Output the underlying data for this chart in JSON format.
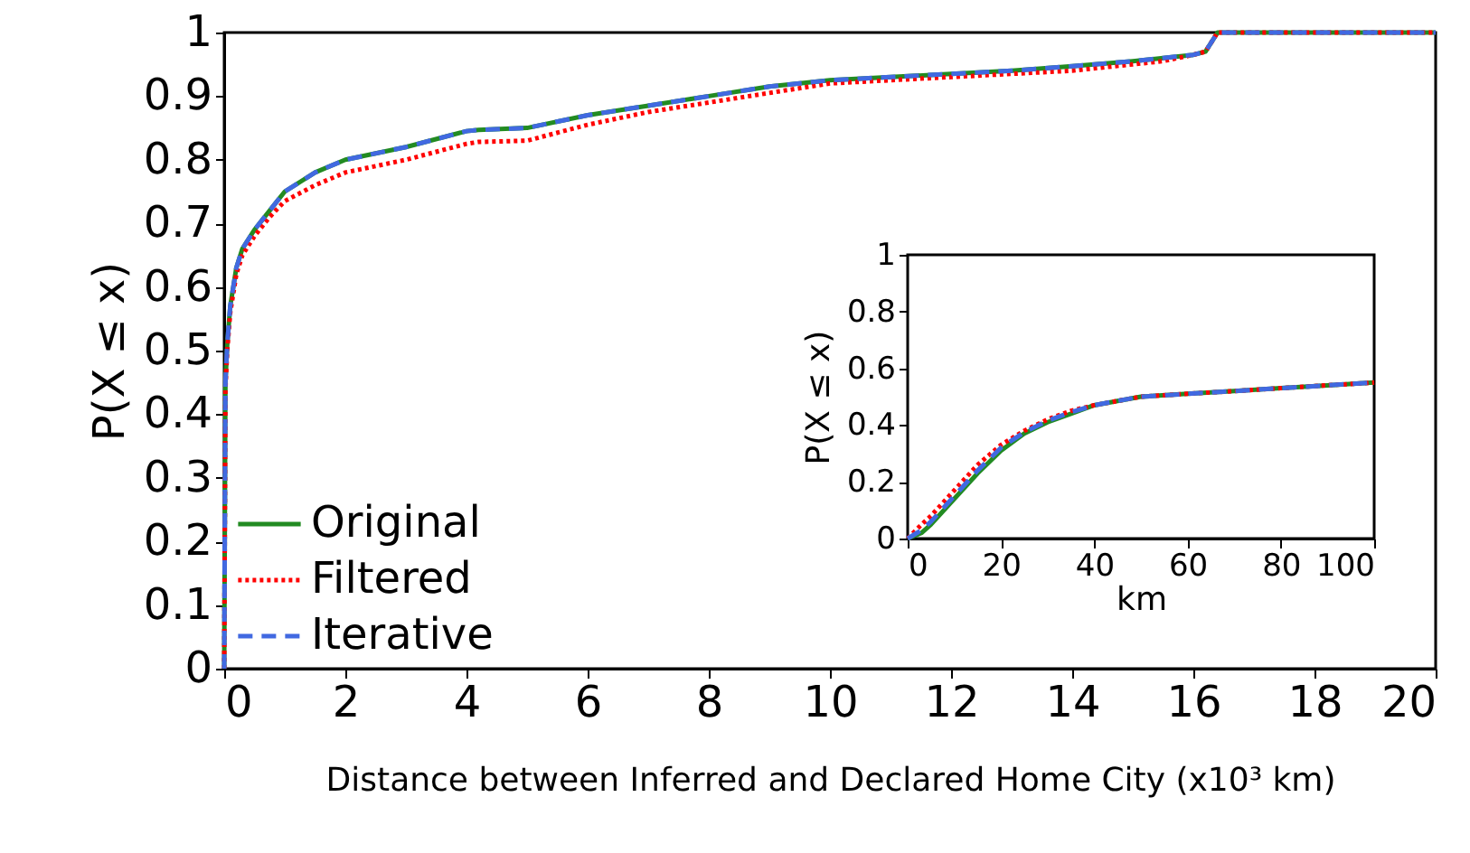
{
  "chart_data": [
    {
      "type": "line",
      "xlabel": "Distance between Inferred and Declared Home City (x10³ km)",
      "ylabel": "P(X ≤ x)",
      "xlim": [
        0,
        20
      ],
      "ylim": [
        0,
        1
      ],
      "xticks": [
        0,
        2,
        4,
        6,
        8,
        10,
        12,
        14,
        16,
        18,
        20
      ],
      "yticks": [
        0,
        0.1,
        0.2,
        0.3,
        0.4,
        0.5,
        0.6,
        0.7,
        0.8,
        0.9,
        1
      ],
      "grid": false,
      "legend": "bottom left",
      "marker": "none",
      "x": [
        0,
        0.02,
        0.05,
        0.1,
        0.2,
        0.3,
        0.5,
        0.75,
        1,
        1.5,
        2,
        3,
        4,
        4.2,
        5,
        6,
        7,
        8,
        9,
        10,
        11,
        12,
        13,
        14,
        15,
        15.5,
        16,
        16.2,
        16.4,
        17,
        18,
        20
      ],
      "series": [
        {
          "name": "Original",
          "color": "#228b22",
          "line_style": "solid",
          "values": [
            0,
            0.45,
            0.51,
            0.57,
            0.63,
            0.66,
            0.69,
            0.72,
            0.75,
            0.78,
            0.8,
            0.82,
            0.845,
            0.847,
            0.85,
            0.87,
            0.885,
            0.9,
            0.915,
            0.925,
            0.93,
            0.935,
            0.94,
            0.947,
            0.955,
            0.96,
            0.965,
            0.97,
            1,
            1,
            1,
            1
          ]
        },
        {
          "name": "Filtered",
          "color": "#ff0000",
          "line_style": "dotted",
          "values": [
            0,
            0.44,
            0.5,
            0.56,
            0.62,
            0.65,
            0.68,
            0.71,
            0.735,
            0.76,
            0.78,
            0.8,
            0.825,
            0.828,
            0.83,
            0.855,
            0.875,
            0.89,
            0.905,
            0.92,
            0.925,
            0.93,
            0.935,
            0.94,
            0.95,
            0.955,
            0.965,
            0.97,
            1,
            1,
            1,
            1
          ]
        },
        {
          "name": "Iterative",
          "color": "#4169e1",
          "line_style": "dashed",
          "values": [
            0,
            0.45,
            0.51,
            0.57,
            0.63,
            0.66,
            0.69,
            0.72,
            0.75,
            0.78,
            0.8,
            0.82,
            0.845,
            0.847,
            0.85,
            0.87,
            0.885,
            0.9,
            0.915,
            0.925,
            0.93,
            0.935,
            0.94,
            0.947,
            0.955,
            0.96,
            0.965,
            0.97,
            1,
            1,
            1,
            1
          ]
        }
      ]
    },
    {
      "type": "line",
      "xlabel": "km",
      "ylabel": "P(X ≤ x)",
      "xlim": [
        0,
        100
      ],
      "ylim": [
        0,
        1
      ],
      "xticks": [
        0,
        20,
        40,
        60,
        80,
        100
      ],
      "yticks": [
        0,
        0.2,
        0.4,
        0.6,
        0.8,
        1
      ],
      "grid": false,
      "marker": "none",
      "x": [
        0,
        3,
        5,
        10,
        15,
        20,
        25,
        30,
        35,
        40,
        50,
        60,
        70,
        80,
        90,
        100
      ],
      "series": [
        {
          "color": "#228b22",
          "line_style": "solid",
          "values": [
            0,
            0.02,
            0.05,
            0.14,
            0.23,
            0.31,
            0.37,
            0.41,
            0.44,
            0.47,
            0.5,
            0.51,
            0.52,
            0.53,
            0.54,
            0.55
          ]
        },
        {
          "color": "#ff0000",
          "line_style": "dotted",
          "values": [
            0,
            0.05,
            0.08,
            0.17,
            0.26,
            0.33,
            0.38,
            0.42,
            0.45,
            0.47,
            0.5,
            0.51,
            0.52,
            0.53,
            0.54,
            0.55
          ]
        },
        {
          "color": "#4169e1",
          "line_style": "dashed",
          "values": [
            0,
            0.03,
            0.06,
            0.15,
            0.24,
            0.32,
            0.375,
            0.415,
            0.445,
            0.47,
            0.5,
            0.51,
            0.52,
            0.53,
            0.54,
            0.55
          ]
        }
      ]
    }
  ]
}
